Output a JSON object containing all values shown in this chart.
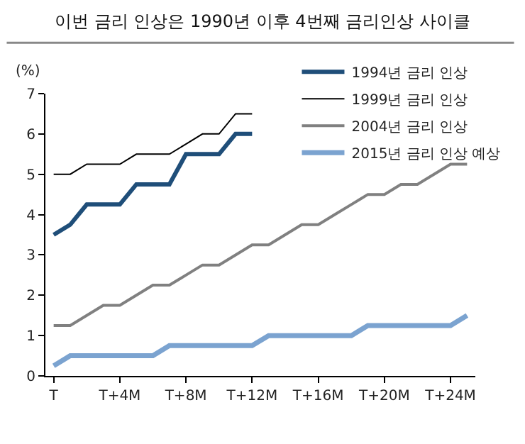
{
  "chart_data": {
    "type": "line",
    "title": "이번 금리 인상은 1990년 이후 4번째 금리인상 사이클",
    "ylabel": "(%)",
    "categories": [
      "T",
      null,
      null,
      null,
      "T+4M",
      null,
      null,
      null,
      "T+8M",
      null,
      null,
      null,
      "T+12M",
      null,
      null,
      null,
      "T+16M",
      null,
      null,
      null,
      "T+20M",
      null,
      null,
      null,
      "T+24M",
      null
    ],
    "ylim": [
      0,
      7
    ],
    "yticks": [
      0,
      1,
      2,
      3,
      4,
      5,
      6,
      7
    ],
    "grid": false,
    "legend": "top right",
    "marker": "none",
    "line_style": "solid",
    "series": [
      {
        "name": "1994년 금리 인상",
        "color": "#1f4e79",
        "values": [
          3.5,
          3.75,
          4.25,
          4.25,
          4.25,
          4.75,
          4.75,
          4.75,
          5.5,
          5.5,
          5.5,
          6,
          6,
          null,
          null,
          null,
          null,
          null,
          null,
          null,
          null,
          null,
          null,
          null,
          null,
          null
        ]
      },
      {
        "name": "1999년 금리 인상",
        "color": "#000000",
        "values": [
          5,
          5,
          5.25,
          5.25,
          5.25,
          5.5,
          5.5,
          5.5,
          5.75,
          6,
          6,
          6.5,
          6.5,
          null,
          null,
          null,
          null,
          null,
          null,
          null,
          null,
          null,
          null,
          null,
          null,
          null
        ]
      },
      {
        "name": "2004년 금리 인상",
        "color": "#808080",
        "values": [
          1.25,
          1.25,
          1.5,
          1.75,
          1.75,
          2,
          2.25,
          2.25,
          2.5,
          2.75,
          2.75,
          3,
          3.25,
          3.25,
          3.5,
          3.75,
          3.75,
          4,
          4.25,
          4.5,
          4.5,
          4.75,
          4.75,
          5,
          5.25,
          5.25
        ]
      },
      {
        "name": "2015년 금리 인상 예상",
        "color": "#7ba3d0",
        "values": [
          0.25,
          0.5,
          0.5,
          0.5,
          0.5,
          0.5,
          0.5,
          0.75,
          0.75,
          0.75,
          0.75,
          0.75,
          0.75,
          1,
          1,
          1,
          1,
          1,
          1,
          1.25,
          1.25,
          1.25,
          1.25,
          1.25,
          1.25,
          1.5
        ]
      }
    ]
  }
}
